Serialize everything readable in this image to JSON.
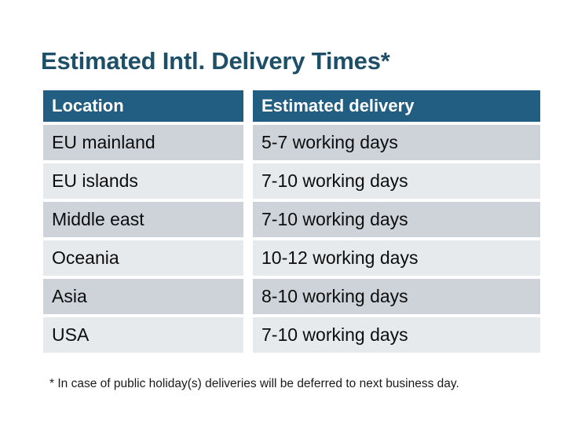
{
  "page": {
    "title": "Estimated Intl. Delivery Times*",
    "footnote": "* In case of public holiday(s) deliveries will be deferred to next business day."
  },
  "table": {
    "headers": {
      "location": "Location",
      "delivery": "Estimated delivery"
    },
    "rows": [
      {
        "location": "EU mainland",
        "delivery": "5-7 working days"
      },
      {
        "location": "EU islands",
        "delivery": "7-10 working days"
      },
      {
        "location": "Middle east",
        "delivery": "7-10 working days"
      },
      {
        "location": "Oceania",
        "delivery": "10-12 working days"
      },
      {
        "location": "Asia",
        "delivery": "8-10 working days"
      },
      {
        "location": "USA",
        "delivery": "7-10 working days"
      }
    ]
  },
  "colors": {
    "title_text": "#1d4f68",
    "header_bg": "#215e81",
    "header_text": "#ffffff",
    "row_dark_bg": "#ced2d9",
    "row_light_bg": "#e7eaed",
    "body_text": "#0d0d0d",
    "page_bg": "#ffffff"
  }
}
